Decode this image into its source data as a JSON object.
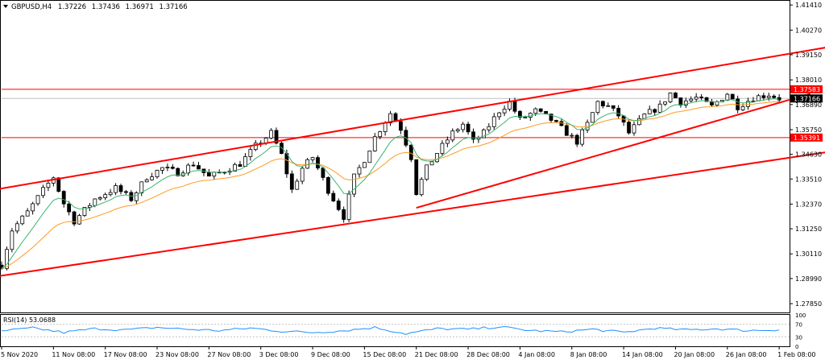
{
  "header": {
    "symbol": "GBPUSD,H4",
    "open": "1.37226",
    "high": "1.37436",
    "low": "1.36971",
    "close": "1.37166"
  },
  "colors": {
    "background": "#ffffff",
    "frame": "#000000",
    "candle": "#000000",
    "ma_fast": "#3cb371",
    "ma_slow": "#ff9a1e",
    "trend_line": "#ff0000",
    "level_line": "#ff0000",
    "current_price_line": "#c0c0c0",
    "rsi_line": "#1e90ff",
    "rsi_levels": "#c0c0c0"
  },
  "chart_data": {
    "type": "line",
    "main": {
      "ylim": [
        1.2745,
        1.416
      ],
      "y_ticks": [
        "1.41410",
        "1.40270",
        "1.39150",
        "1.38010",
        "1.36890",
        "1.35750",
        "1.34630",
        "1.33510",
        "1.32370",
        "1.31250",
        "1.30110",
        "1.28990",
        "1.27850"
      ],
      "x_range": [
        0,
        152
      ],
      "x_ticks": [
        {
          "x": 0,
          "label": "5 Nov 2020"
        },
        {
          "x": 10,
          "label": "11 Nov 08:00"
        },
        {
          "x": 20,
          "label": "17 Nov 08:00"
        },
        {
          "x": 30,
          "label": "23 Nov 08:00"
        },
        {
          "x": 40,
          "label": "27 Nov 08:00"
        },
        {
          "x": 50,
          "label": "3 Dec 08:00"
        },
        {
          "x": 60,
          "label": "9 Dec 08:00"
        },
        {
          "x": 70,
          "label": "15 Dec 08:00"
        },
        {
          "x": 80,
          "label": "21 Dec 08:00"
        },
        {
          "x": 90,
          "label": "28 Dec 08:00"
        },
        {
          "x": 100,
          "label": "4 Jan 08:00"
        },
        {
          "x": 110,
          "label": "8 Jan 08:00"
        },
        {
          "x": 120,
          "label": "14 Jan 08:00"
        },
        {
          "x": 130,
          "label": "20 Jan 08:00"
        },
        {
          "x": 140,
          "label": "26 Jan 08:00"
        },
        {
          "x": 150,
          "label": "1 Feb 08:00"
        }
      ],
      "close_anchors": [
        [
          0,
          1.296
        ],
        [
          2,
          1.312
        ],
        [
          5,
          1.32
        ],
        [
          8,
          1.33
        ],
        [
          10,
          1.336
        ],
        [
          12,
          1.324
        ],
        [
          14,
          1.316
        ],
        [
          18,
          1.326
        ],
        [
          22,
          1.331
        ],
        [
          25,
          1.326
        ],
        [
          28,
          1.336
        ],
        [
          31,
          1.34
        ],
        [
          34,
          1.338
        ],
        [
          37,
          1.342
        ],
        [
          40,
          1.336
        ],
        [
          43,
          1.339
        ],
        [
          46,
          1.342
        ],
        [
          49,
          1.35
        ],
        [
          52,
          1.356
        ],
        [
          54,
          1.346
        ],
        [
          56,
          1.33
        ],
        [
          58,
          1.34
        ],
        [
          60,
          1.345
        ],
        [
          63,
          1.33
        ],
        [
          66,
          1.318
        ],
        [
          68,
          1.336
        ],
        [
          70,
          1.344
        ],
        [
          72,
          1.354
        ],
        [
          75,
          1.365
        ],
        [
          77,
          1.358
        ],
        [
          79,
          1.345
        ],
        [
          80,
          1.329
        ],
        [
          82,
          1.34
        ],
        [
          84,
          1.347
        ],
        [
          87,
          1.356
        ],
        [
          89,
          1.36
        ],
        [
          91,
          1.352
        ],
        [
          93,
          1.356
        ],
        [
          96,
          1.366
        ],
        [
          98,
          1.37
        ],
        [
          100,
          1.362
        ],
        [
          103,
          1.366
        ],
        [
          106,
          1.362
        ],
        [
          109,
          1.356
        ],
        [
          111,
          1.352
        ],
        [
          113,
          1.36
        ],
        [
          115,
          1.37
        ],
        [
          117,
          1.368
        ],
        [
          119,
          1.364
        ],
        [
          121,
          1.356
        ],
        [
          124,
          1.364
        ],
        [
          127,
          1.368
        ],
        [
          129,
          1.374
        ],
        [
          131,
          1.37
        ],
        [
          134,
          1.372
        ],
        [
          137,
          1.368
        ],
        [
          140,
          1.374
        ],
        [
          142,
          1.368
        ],
        [
          145,
          1.372
        ],
        [
          148,
          1.3735
        ],
        [
          150,
          1.3717
        ]
      ],
      "candle_count": 151,
      "ma_fast_period": 8,
      "ma_slow_period": 21,
      "horizontal_levels": [
        {
          "price": 1.37583,
          "label": "1.37583"
        },
        {
          "price": 1.35391,
          "label": "1.35391"
        }
      ],
      "current_price": {
        "price": 1.37166,
        "label": "1.37166"
      },
      "trend_lines": [
        {
          "x1": -2,
          "y1": 1.33,
          "x2": 162,
          "y2": 1.396
        },
        {
          "x1": -2,
          "y1": 1.2905,
          "x2": 162,
          "y2": 1.3483
        },
        {
          "x1": 80,
          "y1": 1.322,
          "x2": 156,
          "y2": 1.3738
        }
      ]
    },
    "rsi": {
      "label": "RSI(14) 53.0688",
      "ylim": [
        0,
        100
      ],
      "levels": [
        30,
        70
      ],
      "y_ticks": [
        "100",
        "70",
        "30",
        "0"
      ],
      "anchors": [
        [
          0,
          48
        ],
        [
          6,
          58
        ],
        [
          12,
          44
        ],
        [
          18,
          56
        ],
        [
          24,
          52
        ],
        [
          30,
          60
        ],
        [
          36,
          54
        ],
        [
          42,
          50
        ],
        [
          48,
          58
        ],
        [
          54,
          48
        ],
        [
          60,
          44
        ],
        [
          66,
          50
        ],
        [
          72,
          60
        ],
        [
          78,
          40
        ],
        [
          84,
          56
        ],
        [
          90,
          54
        ],
        [
          96,
          62
        ],
        [
          102,
          50
        ],
        [
          108,
          46
        ],
        [
          114,
          54
        ],
        [
          120,
          44
        ],
        [
          126,
          58
        ],
        [
          132,
          52
        ],
        [
          138,
          56
        ],
        [
          144,
          50
        ],
        [
          150,
          53
        ]
      ]
    }
  }
}
